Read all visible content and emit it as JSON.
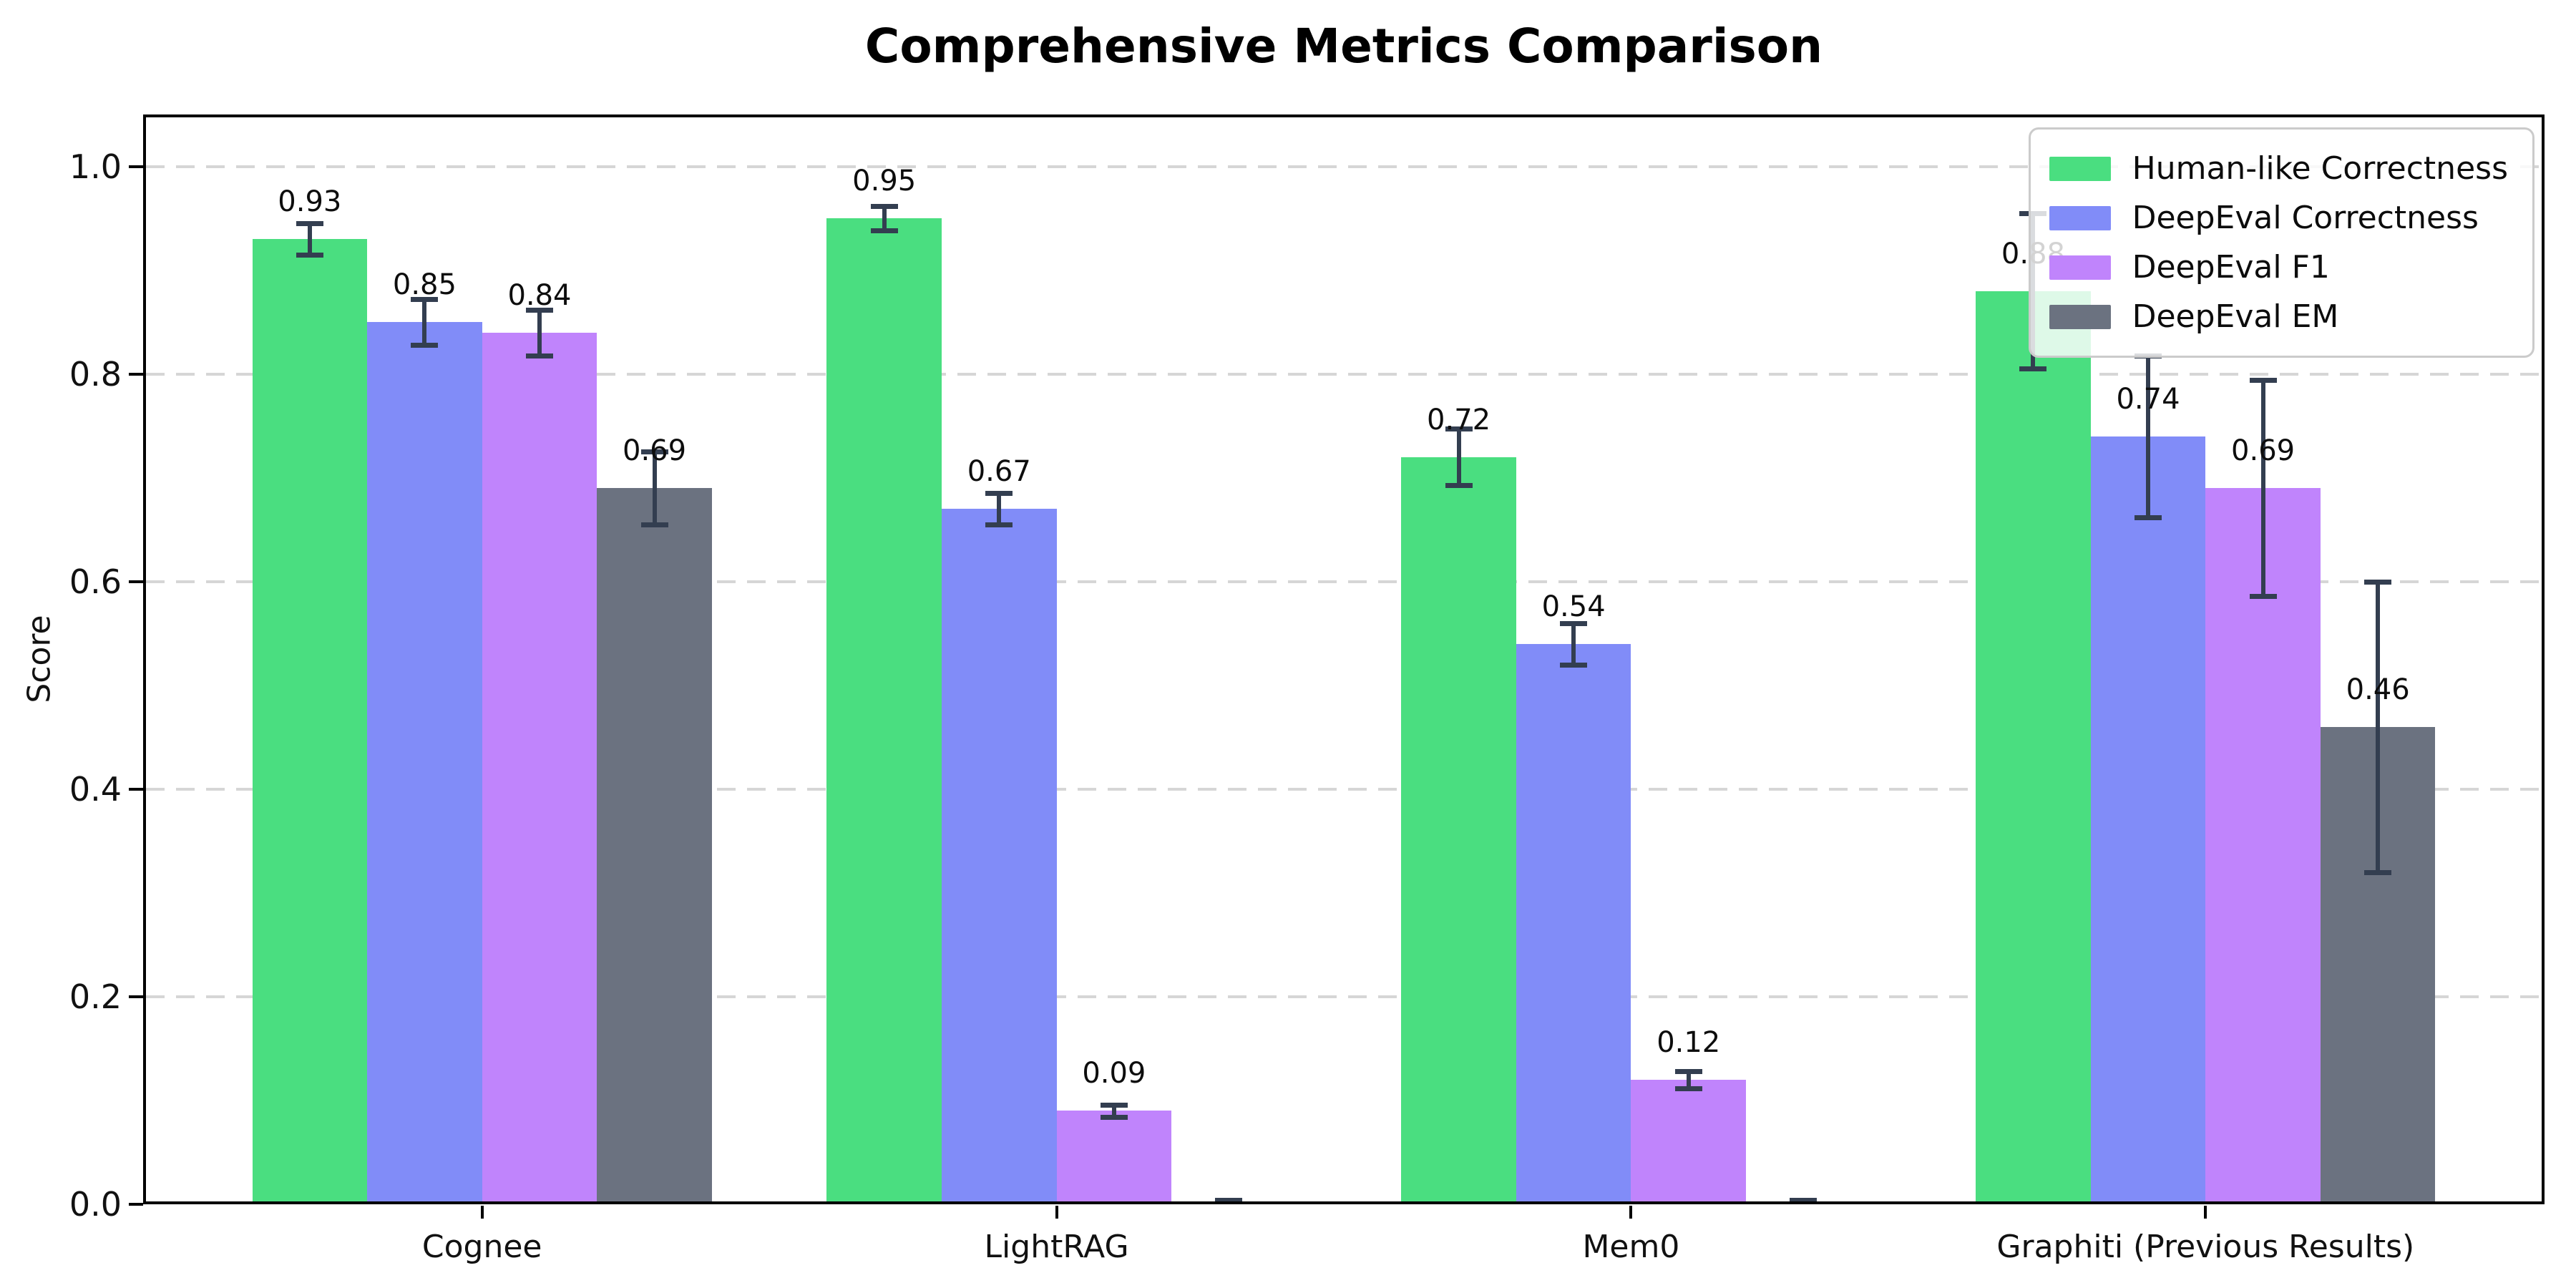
{
  "chart_data": {
    "type": "bar",
    "title": "Comprehensive Metrics Comparison",
    "xlabel": "",
    "ylabel": "Score",
    "categories": [
      "Cognee",
      "LightRAG",
      "Mem0",
      "Graphiti (Previous Results)"
    ],
    "series": [
      {
        "name": "Human-like Correctness",
        "color": "#4ade80",
        "values": [
          0.93,
          0.95,
          0.72,
          0.88
        ],
        "errors": [
          0.015,
          0.012,
          0.027,
          0.075
        ],
        "labels": [
          "0.93",
          "0.95",
          "0.72",
          "0.88"
        ]
      },
      {
        "name": "DeepEval Correctness",
        "color": "#818cf8",
        "values": [
          0.85,
          0.67,
          0.54,
          0.74
        ],
        "errors": [
          0.022,
          0.015,
          0.02,
          0.078
        ],
        "labels": [
          "0.85",
          "0.67",
          "0.54",
          "0.74"
        ]
      },
      {
        "name": "DeepEval F1",
        "color": "#c084fc",
        "values": [
          0.84,
          0.09,
          0.12,
          0.69
        ],
        "errors": [
          0.022,
          0.006,
          0.008,
          0.104
        ],
        "labels": [
          "0.84",
          "0.09",
          "0.12",
          "0.69"
        ]
      },
      {
        "name": "DeepEval EM",
        "color": "#6b7280",
        "values": [
          0.69,
          0.0,
          0.0,
          0.46
        ],
        "errors": [
          0.035,
          0.004,
          0.004,
          0.14
        ],
        "labels": [
          "0.69",
          "",
          "",
          "0.46"
        ]
      }
    ],
    "ytick_labels": [
      "0.0",
      "0.2",
      "0.4",
      "0.6",
      "0.8",
      "1.0"
    ],
    "yticks": [
      0.0,
      0.2,
      0.4,
      0.6,
      0.8,
      1.0
    ],
    "ylim": [
      0,
      1.05
    ],
    "bar_width": 0.2,
    "group_offsets": [
      -0.3,
      -0.1,
      0.1,
      0.3
    ],
    "grid": {
      "axis": "y",
      "style": "dashed",
      "color": "#d6d6d6"
    },
    "legend_position": "upper right",
    "error_bar_color": "#333e50",
    "spine_color": "#000000",
    "background_color": "#ffffff"
  }
}
